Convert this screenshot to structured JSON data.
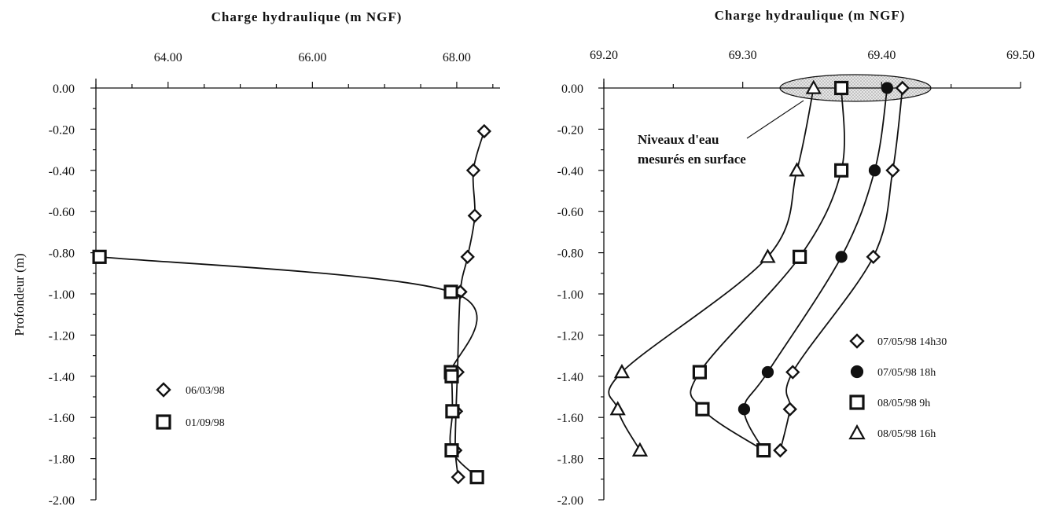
{
  "chart_data": [
    {
      "type": "line",
      "title": "",
      "xlabel": "Charge hydraulique (m NGF)",
      "ylabel": "Profondeur (m)",
      "x_range": [
        63.0,
        68.6
      ],
      "y_range": [
        -2.0,
        0.0
      ],
      "x_major_ticks": [
        64.0,
        66.0,
        68.0
      ],
      "x_tick_labels": [
        "64.00",
        "66.00",
        "68.00"
      ],
      "x_minor_ticks": [
        63.0,
        63.5,
        64.5,
        65.0,
        65.5,
        66.5,
        67.0,
        67.5,
        68.5
      ],
      "y_ticks": [
        0.0,
        -0.2,
        -0.4,
        -0.6,
        -0.8,
        -1.0,
        -1.2,
        -1.4,
        -1.6,
        -1.8,
        -2.0
      ],
      "y_tick_labels": [
        "0.00",
        "-0.20",
        "-0.40",
        "-0.60",
        "-0.80",
        "-1.00",
        "-1.20",
        "-1.40",
        "-1.60",
        "-1.80",
        "-2.00"
      ],
      "x_axis_position": "top",
      "grid": false,
      "legend_position": "bottom-left",
      "series": [
        {
          "name": "06/03/98",
          "marker": "diamond-open",
          "points": [
            {
              "x": 68.38,
              "y": -0.21
            },
            {
              "x": 68.23,
              "y": -0.4
            },
            {
              "x": 68.25,
              "y": -0.62
            },
            {
              "x": 68.15,
              "y": -0.82
            },
            {
              "x": 68.05,
              "y": -0.99
            },
            {
              "x": 68.01,
              "y": -1.38
            },
            {
              "x": 67.99,
              "y": -1.57
            },
            {
              "x": 67.98,
              "y": -1.76
            },
            {
              "x": 68.02,
              "y": -1.89
            }
          ]
        },
        {
          "name": "01/09/98",
          "marker": "square-open",
          "points": [
            {
              "x": 63.05,
              "y": -0.82
            },
            {
              "x": 67.92,
              "y": -0.99
            },
            {
              "x": 67.92,
              "y": -1.38
            },
            {
              "x": 67.93,
              "y": -1.4
            },
            {
              "x": 67.94,
              "y": -1.57
            },
            {
              "x": 67.93,
              "y": -1.76
            },
            {
              "x": 68.28,
              "y": -1.89
            }
          ]
        }
      ]
    },
    {
      "type": "line",
      "title": "",
      "xlabel": "Charge hydraulique (m NGF)",
      "ylabel": "",
      "x_range": [
        69.2,
        69.5
      ],
      "y_range": [
        -2.0,
        0.0
      ],
      "x_major_ticks": [
        69.2,
        69.3,
        69.4,
        69.5
      ],
      "x_tick_labels": [
        "69.20",
        "69.30",
        "69.40",
        "69.50"
      ],
      "x_minor_ticks": [
        69.25,
        69.35,
        69.45
      ],
      "y_ticks": [
        0.0,
        -0.2,
        -0.4,
        -0.6,
        -0.8,
        -1.0,
        -1.2,
        -1.4,
        -1.6,
        -1.8,
        -2.0
      ],
      "y_tick_labels": [
        "0.00",
        "-0.20",
        "-0.40",
        "-0.60",
        "-0.80",
        "-1.00",
        "-1.20",
        "-1.40",
        "-1.60",
        "-1.80",
        "-2.00"
      ],
      "x_axis_position": "top",
      "grid": false,
      "legend_position": "right",
      "annotation": "Niveaux d'eau mesurés en surface",
      "annotation_lines": [
        "Niveaux d'eau",
        "mesurés en surface"
      ],
      "series": [
        {
          "name": "07/05/98 14h30",
          "marker": "diamond-open",
          "points": [
            {
              "x": 69.415,
              "y": 0.0
            },
            {
              "x": 69.408,
              "y": -0.4
            },
            {
              "x": 69.394,
              "y": -0.82
            },
            {
              "x": 69.336,
              "y": -1.38
            },
            {
              "x": 69.334,
              "y": -1.56
            },
            {
              "x": 69.327,
              "y": -1.76
            }
          ]
        },
        {
          "name": "07/05/98 18h",
          "marker": "circle-filled",
          "points": [
            {
              "x": 69.404,
              "y": 0.0
            },
            {
              "x": 69.395,
              "y": -0.4
            },
            {
              "x": 69.371,
              "y": -0.82
            },
            {
              "x": 69.318,
              "y": -1.38
            },
            {
              "x": 69.301,
              "y": -1.56
            },
            {
              "x": 69.315,
              "y": -1.76
            }
          ]
        },
        {
          "name": "08/05/98 9h",
          "marker": "square-open",
          "points": [
            {
              "x": 69.371,
              "y": 0.0
            },
            {
              "x": 69.371,
              "y": -0.4
            },
            {
              "x": 69.341,
              "y": -0.82
            },
            {
              "x": 69.269,
              "y": -1.38
            },
            {
              "x": 69.271,
              "y": -1.56
            },
            {
              "x": 69.315,
              "y": -1.76
            }
          ]
        },
        {
          "name": "08/05/98 16h",
          "marker": "triangle-open",
          "points": [
            {
              "x": 69.351,
              "y": 0.0
            },
            {
              "x": 69.339,
              "y": -0.4
            },
            {
              "x": 69.318,
              "y": -0.82
            },
            {
              "x": 69.213,
              "y": -1.38
            },
            {
              "x": 69.21,
              "y": -1.56
            },
            {
              "x": 69.226,
              "y": -1.76
            }
          ]
        }
      ]
    }
  ]
}
